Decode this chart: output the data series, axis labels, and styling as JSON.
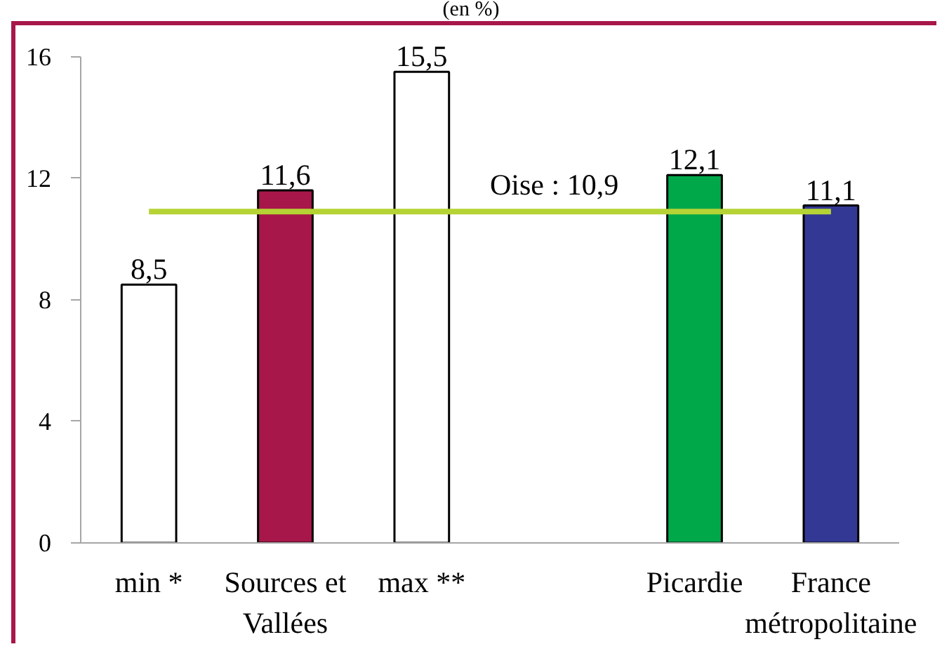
{
  "chart_data": {
    "type": "bar",
    "title": "(en %)",
    "categories": [
      "min *",
      "Sources et Vallées",
      "max **",
      null,
      "Picardie",
      "France métropolitaine"
    ],
    "values": [
      8.5,
      11.6,
      15.5,
      null,
      12.1,
      11.1
    ],
    "colors": [
      "#ffffff",
      "#a8174a",
      "#ffffff",
      null,
      "#00a84a",
      "#333894"
    ],
    "value_labels": [
      "8,5",
      "11,6",
      "15,5",
      null,
      "12,1",
      "11,1"
    ],
    "ylim": [
      0,
      16
    ],
    "yticks": [
      0,
      4,
      8,
      12,
      16
    ],
    "grid": false,
    "ref_lines": [
      {
        "axis": "y",
        "value": 10.9,
        "label": "Oise : 10,9",
        "color": "#b5d334"
      }
    ]
  }
}
